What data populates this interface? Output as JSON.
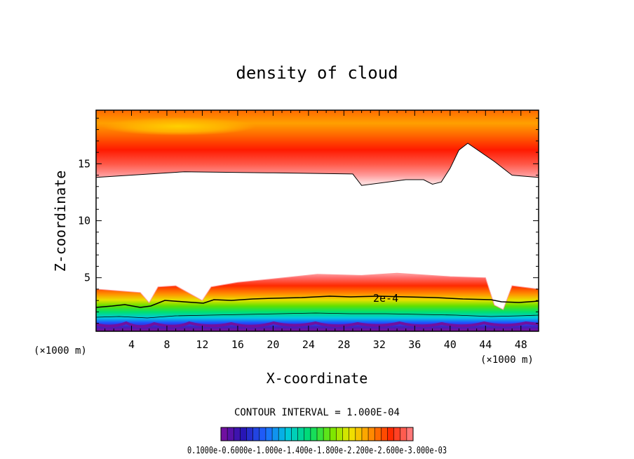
{
  "chart_data": {
    "type": "contour",
    "title": "density of cloud",
    "xlabel": "X-coordinate",
    "ylabel": "Z-coordinate",
    "x_unit": "(×1000 m)",
    "y_unit": "(×1000 m)",
    "xlim": [
      0,
      50
    ],
    "ylim": [
      0.3,
      19.7
    ],
    "x_ticks": [
      4,
      8,
      12,
      16,
      20,
      24,
      28,
      32,
      36,
      40,
      44,
      48
    ],
    "y_ticks": [
      5,
      10,
      15
    ],
    "contour_interval_text": "CONTOUR INTERVAL = 1.000E-04",
    "contour_label": "2e-4",
    "colorbar_text": "0.1000e-0.6000e-1.000e-1.400e-1.800e-2.200e-2.600e-3.000e-03",
    "colorbar_levels": [
      0.0001,
      0.0002,
      0.0003,
      0.0004,
      0.0005,
      0.0006,
      0.0007,
      0.0008,
      0.0009,
      0.001,
      0.0011,
      0.0012,
      0.0013,
      0.0014,
      0.0015,
      0.0016,
      0.0017,
      0.0018,
      0.0019,
      0.002,
      0.0021,
      0.0022,
      0.0023,
      0.0024,
      0.0025,
      0.0026,
      0.0027,
      0.0028,
      0.0029,
      0.003
    ],
    "upper_cloud_base_z": [
      [
        0,
        13.8
      ],
      [
        10,
        14.3
      ],
      [
        20,
        14.2
      ],
      [
        29,
        14.1
      ],
      [
        30,
        13.1
      ],
      [
        35,
        13.6
      ],
      [
        37,
        13.6
      ],
      [
        38,
        13.2
      ],
      [
        39,
        13.4
      ],
      [
        40,
        14.6
      ],
      [
        41,
        16.2
      ],
      [
        42,
        16.8
      ],
      [
        45,
        15.2
      ],
      [
        47,
        14.0
      ],
      [
        50,
        13.8
      ]
    ],
    "lower_cloud_top_z": [
      [
        0,
        4.0
      ],
      [
        5,
        3.7
      ],
      [
        6,
        2.8
      ],
      [
        7,
        4.2
      ],
      [
        9,
        4.3
      ],
      [
        12,
        3.0
      ],
      [
        13,
        4.2
      ],
      [
        16,
        4.6
      ],
      [
        20,
        4.9
      ],
      [
        25,
        5.3
      ],
      [
        30,
        5.2
      ],
      [
        34,
        5.4
      ],
      [
        40,
        5.1
      ],
      [
        44,
        5.0
      ],
      [
        45,
        2.6
      ],
      [
        46,
        2.2
      ],
      [
        47,
        4.3
      ],
      [
        50,
        4.0
      ]
    ]
  },
  "colors": {
    "background": "#ffffff",
    "axes": "#000000",
    "max_density": "#ffcc00",
    "high_density": "#ff2000",
    "edge_density": "#ffd0d0",
    "mid_density": "#00e060",
    "low_density": "#4020c0",
    "min_density": "#7010a0"
  }
}
